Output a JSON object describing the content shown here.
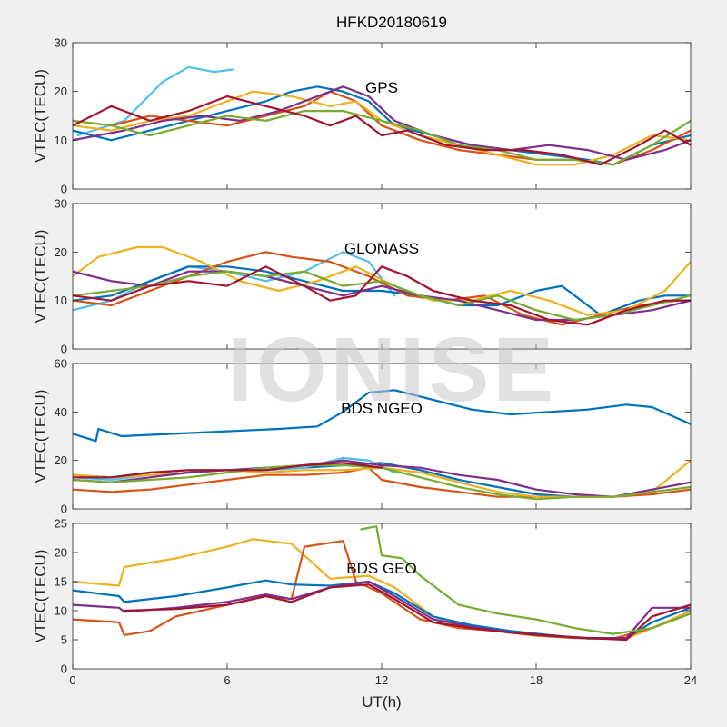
{
  "figure_title": "HFKD20180619",
  "watermark": "IONISE",
  "chart_data": [
    {
      "type": "line",
      "panel_label": "GPS",
      "ylabel": "VTEC(TECU)",
      "xlabel": "",
      "xlim": [
        0,
        24
      ],
      "ylim": [
        0,
        30
      ],
      "xticks": [
        0,
        6,
        12,
        18,
        24
      ],
      "yticks": [
        0,
        10,
        20,
        30
      ],
      "show_x_tick_labels": false,
      "series": [
        {
          "color": "#4DBEEE",
          "x": [
            0.2,
            2,
            3.5,
            4.5,
            5.5,
            6.2
          ],
          "y": [
            11,
            14,
            22,
            25,
            24,
            24.5
          ]
        },
        {
          "color": "#0072BD",
          "x": [
            0,
            1.5,
            3,
            4.5,
            6,
            7.5,
            8.5,
            9.5,
            10.5,
            11.5,
            12.5,
            14,
            15.5,
            17,
            18.5,
            20,
            21,
            22.5,
            24
          ],
          "y": [
            12,
            10,
            12,
            14,
            16,
            18,
            20,
            21,
            20,
            18,
            13,
            11,
            9,
            8,
            7,
            6,
            5,
            9,
            11
          ]
        },
        {
          "color": "#D95319",
          "x": [
            0,
            1.5,
            3,
            4.5,
            6,
            7.5,
            9,
            10,
            11,
            12,
            13.5,
            15,
            16.5,
            18,
            19.5,
            21,
            22.5,
            24
          ],
          "y": [
            14,
            13,
            15,
            14,
            13,
            15,
            17,
            20,
            18,
            13,
            10,
            8,
            7,
            6,
            6,
            5,
            8,
            12
          ]
        },
        {
          "color": "#EDB120",
          "x": [
            0,
            1.5,
            3,
            4.5,
            6,
            7,
            8.5,
            10,
            11,
            12,
            13.5,
            15,
            16.5,
            18,
            19.5,
            21,
            22.5,
            24
          ],
          "y": [
            13,
            12,
            14,
            15,
            18,
            20,
            19,
            17,
            18,
            14,
            11,
            9,
            7,
            5,
            5,
            7,
            11,
            10
          ]
        },
        {
          "color": "#7E2F8E",
          "x": [
            0,
            2,
            3.5,
            5,
            6.5,
            8,
            9.5,
            10.5,
            11.5,
            12.5,
            14,
            15.5,
            17,
            18.5,
            20,
            21.5,
            23,
            24
          ],
          "y": [
            10,
            12,
            14,
            15,
            14,
            16,
            19,
            21,
            19,
            14,
            11,
            9,
            8,
            9,
            8,
            6,
            8,
            10
          ]
        },
        {
          "color": "#77AC30",
          "x": [
            0,
            1.5,
            3,
            4.5,
            6,
            7.5,
            9,
            10.5,
            12,
            13.5,
            15,
            16.5,
            18,
            19.5,
            21,
            22.5,
            24
          ],
          "y": [
            14,
            13,
            11,
            13,
            15,
            14,
            16,
            16,
            14,
            12,
            9,
            8,
            6,
            6,
            5,
            9,
            14
          ]
        },
        {
          "color": "#A2142F",
          "x": [
            0,
            1.5,
            3,
            4.5,
            6,
            7.5,
            9,
            10,
            11,
            12,
            13,
            14.5,
            16,
            17.5,
            19,
            20.5,
            22,
            23,
            24
          ],
          "y": [
            13,
            17,
            14,
            16,
            19,
            17,
            15,
            13,
            15,
            11,
            12,
            9,
            8,
            8,
            7,
            5,
            9,
            12,
            9
          ]
        }
      ]
    },
    {
      "type": "line",
      "panel_label": "GLONASS",
      "ylabel": "VTEC(TECU)",
      "xlabel": "",
      "xlim": [
        0,
        24
      ],
      "ylim": [
        0,
        30
      ],
      "xticks": [
        0,
        6,
        12,
        18,
        24
      ],
      "yticks": [
        0,
        10,
        20,
        30
      ],
      "show_x_tick_labels": false,
      "series": [
        {
          "color": "#4DBEEE",
          "x": [
            0,
            1.5,
            3,
            4.5,
            6,
            7.5,
            9,
            10.5,
            11.5,
            12.5
          ],
          "y": [
            8,
            10,
            14,
            17,
            16,
            14,
            16,
            20,
            18,
            11
          ]
        },
        {
          "color": "#0072BD",
          "x": [
            0,
            1.5,
            3,
            4.5,
            6,
            7.5,
            9,
            10.5,
            12,
            13.5,
            15,
            16.5,
            18,
            19,
            20.5,
            22,
            23,
            24
          ],
          "y": [
            10,
            11,
            14,
            17,
            17,
            16,
            14,
            12,
            12,
            11,
            9,
            9,
            12,
            13,
            7,
            10,
            11,
            11
          ]
        },
        {
          "color": "#D95319",
          "x": [
            0,
            1.5,
            3,
            4.5,
            6,
            7.5,
            8.5,
            10,
            11.5,
            13,
            14.5,
            16,
            17.5,
            19,
            20.5,
            22,
            23.5,
            24
          ],
          "y": [
            10,
            9,
            12,
            15,
            18,
            20,
            19,
            18,
            15,
            11,
            10,
            11,
            7,
            5,
            7,
            9,
            10,
            10
          ]
        },
        {
          "color": "#EDB120",
          "x": [
            0,
            1,
            2.5,
            3.5,
            5,
            6.5,
            8,
            9.5,
            11,
            12.5,
            14,
            15.5,
            17,
            18.5,
            20,
            21.5,
            23,
            24
          ],
          "y": [
            15,
            19,
            21,
            21,
            18,
            14,
            12,
            14,
            17,
            13,
            10,
            10,
            12,
            10,
            7,
            8,
            12,
            18
          ]
        },
        {
          "color": "#7E2F8E",
          "x": [
            0,
            1.5,
            3,
            4.5,
            6,
            7.5,
            9,
            10.5,
            12,
            13.5,
            15,
            16.5,
            18,
            19.5,
            21,
            22.5,
            24
          ],
          "y": [
            16,
            14,
            13,
            16,
            16,
            15,
            13,
            11,
            13,
            11,
            10,
            8,
            6,
            6,
            7,
            8,
            10
          ]
        },
        {
          "color": "#77AC30",
          "x": [
            0,
            1.5,
            3,
            4.5,
            6,
            7.5,
            9,
            10.5,
            12,
            13.5,
            15,
            16.5,
            18,
            19.5,
            21,
            22.5,
            24
          ],
          "y": [
            11,
            12,
            13,
            15,
            16,
            15,
            16,
            13,
            14,
            11,
            9,
            11,
            8,
            6,
            7,
            9,
            11
          ]
        },
        {
          "color": "#A2142F",
          "x": [
            0,
            1.5,
            3,
            4.5,
            6,
            7.5,
            9,
            10,
            11,
            12,
            13,
            14,
            15.5,
            17,
            18.5,
            20,
            21.5,
            23,
            24
          ],
          "y": [
            11,
            10,
            13,
            14,
            13,
            17,
            13,
            10,
            11,
            17,
            15,
            12,
            10,
            9,
            6,
            5,
            8,
            10,
            10
          ]
        }
      ]
    },
    {
      "type": "line",
      "panel_label": "BDS NGEO",
      "ylabel": "VTEC(TECU)",
      "xlabel": "",
      "xlim": [
        0,
        24
      ],
      "ylim": [
        0,
        60
      ],
      "xticks": [
        0,
        6,
        12,
        18,
        24
      ],
      "yticks": [
        0,
        20,
        40,
        60
      ],
      "show_x_tick_labels": false,
      "series": [
        {
          "color": "#0072BD",
          "x": [
            0,
            0.9,
            1,
            1.9,
            8,
            9.5,
            10.5,
            11.5,
            12.5,
            14,
            15.5,
            17,
            18.5,
            20,
            21.5,
            22.5,
            24
          ],
          "y": [
            31,
            28,
            33,
            30,
            33,
            34,
            40,
            48,
            49,
            45,
            41,
            39,
            40,
            41,
            43,
            42,
            35
          ]
        },
        {
          "color": "#0072BD",
          "x": [
            0,
            1.5,
            3,
            4.5,
            6,
            7.5,
            9,
            10.5,
            12,
            13.5,
            15,
            16.5,
            18,
            19.5
          ],
          "y": [
            14,
            13,
            15,
            16,
            16,
            16,
            17,
            18,
            19,
            16,
            12,
            9,
            6,
            5
          ]
        },
        {
          "color": "#4DBEEE",
          "x": [
            0,
            1.5,
            3,
            4.5,
            6,
            7.5,
            9,
            10.5,
            11.5,
            12.5
          ],
          "y": [
            13,
            12,
            14,
            15,
            16,
            16,
            17,
            21,
            20,
            15
          ]
        },
        {
          "color": "#D95319",
          "x": [
            0,
            1.5,
            3,
            4.5,
            6,
            7.5,
            9,
            10.5,
            11.5,
            12,
            13.5,
            15,
            16.5,
            18,
            19.5,
            21,
            22.5,
            24
          ],
          "y": [
            8,
            7,
            8,
            10,
            12,
            14,
            14,
            15,
            17,
            12,
            9,
            7,
            5,
            5,
            5,
            5,
            6,
            8
          ]
        },
        {
          "color": "#EDB120",
          "x": [
            0,
            1.5,
            3,
            4.5,
            6,
            7.5,
            9,
            10.5,
            12,
            13.5,
            15,
            16.5,
            18,
            19.5,
            21,
            22.5,
            24
          ],
          "y": [
            14,
            13,
            14,
            15,
            16,
            15,
            16,
            16,
            17,
            15,
            11,
            7,
            5,
            5,
            5,
            7,
            20
          ]
        },
        {
          "color": "#7E2F8E",
          "x": [
            0,
            1.5,
            3,
            4.5,
            6,
            7.5,
            9,
            10.5,
            12,
            13.5,
            15,
            16.5,
            18,
            19.5,
            21,
            22.5,
            24
          ],
          "y": [
            12,
            11,
            13,
            15,
            16,
            17,
            18,
            20,
            18,
            17,
            14,
            12,
            8,
            6,
            5,
            8,
            11
          ]
        },
        {
          "color": "#77AC30",
          "x": [
            0,
            1.5,
            3,
            4.5,
            6,
            7.5,
            9,
            10.5,
            12,
            13.5,
            15,
            16.5,
            18,
            19.5,
            21,
            22.5,
            24
          ],
          "y": [
            12,
            11,
            12,
            13,
            15,
            17,
            18,
            18,
            17,
            13,
            9,
            6,
            4,
            5,
            5,
            7,
            9
          ]
        },
        {
          "color": "#A2142F",
          "x": [
            0,
            1.5,
            3,
            4.5,
            6,
            7.5,
            9,
            10.5,
            12
          ],
          "y": [
            13,
            13,
            15,
            16,
            16,
            16,
            18,
            19,
            17
          ]
        }
      ]
    },
    {
      "type": "line",
      "panel_label": "BDS GEO",
      "ylabel": "VTEC(TECU)",
      "xlabel": "UT(h)",
      "xlim": [
        0,
        24
      ],
      "ylim": [
        0,
        25
      ],
      "xticks": [
        0,
        6,
        12,
        18,
        24
      ],
      "yticks": [
        0,
        5,
        10,
        15,
        20,
        25
      ],
      "show_x_tick_labels": true,
      "series": [
        {
          "color": "#EDB120",
          "x": [
            0,
            1.8,
            2,
            4,
            6,
            7,
            8.5,
            10,
            11.5,
            12.5,
            14,
            15.5,
            17,
            18.5,
            20,
            21.5,
            22.5,
            24
          ],
          "y": [
            15,
            14.3,
            17.5,
            19,
            21,
            22.3,
            21.5,
            15.5,
            16,
            14,
            9,
            7,
            6.5,
            5.8,
            5.2,
            5.2,
            7,
            10
          ]
        },
        {
          "color": "#D95319",
          "x": [
            0,
            1.8,
            2,
            3,
            4,
            6,
            7.5,
            8.5,
            9,
            10.5,
            11,
            12,
            13.5,
            15,
            16.5,
            18,
            19.5,
            21,
            22.5,
            24
          ],
          "y": [
            8.5,
            8,
            5.8,
            6.5,
            9,
            11,
            12.5,
            12,
            21,
            22,
            15,
            13,
            8.5,
            7,
            6.5,
            5.7,
            5.3,
            5.2,
            7,
            9.5
          ]
        },
        {
          "color": "#0072BD",
          "x": [
            0,
            1.8,
            2,
            4,
            6,
            7.5,
            8.5,
            10,
            11.5,
            12.5,
            14,
            15.5,
            17,
            18.5,
            20,
            21.5,
            22.5,
            24
          ],
          "y": [
            13.5,
            12.5,
            11.5,
            12.5,
            14,
            15.2,
            14.5,
            14.3,
            15,
            13,
            9,
            7.5,
            6.5,
            5.8,
            5.2,
            5.2,
            8,
            10.5
          ]
        },
        {
          "color": "#7E2F8E",
          "x": [
            0,
            1.8,
            2,
            4,
            6,
            7.5,
            8.5,
            10,
            11.5,
            12.5,
            14,
            15.5,
            17,
            18.5,
            20,
            21.5,
            22.5,
            24
          ],
          "y": [
            11,
            10.5,
            9.8,
            10.5,
            11.5,
            12.8,
            12,
            14,
            15,
            12.5,
            8.5,
            7.2,
            6.3,
            5.7,
            5.3,
            5.3,
            10.5,
            10.5
          ]
        },
        {
          "color": "#A2142F",
          "x": [
            2,
            4,
            6,
            7.5,
            8.5,
            10,
            11.5,
            12.5,
            14,
            15.5,
            17,
            18.5,
            20,
            21.5,
            22.5,
            24
          ],
          "y": [
            10,
            10.3,
            11,
            12.5,
            11.5,
            14,
            14.5,
            12,
            8,
            7,
            6.2,
            5.7,
            5.3,
            5,
            9,
            11
          ]
        },
        {
          "color": "#77AC30",
          "x": [
            11.2,
            11.8,
            12,
            12.8,
            13.5,
            15,
            16.5,
            18,
            19.5,
            21,
            22.5,
            24
          ],
          "y": [
            24,
            24.5,
            19.5,
            19,
            16,
            11,
            9.5,
            8.5,
            7,
            6,
            7,
            9.5
          ]
        }
      ]
    }
  ]
}
